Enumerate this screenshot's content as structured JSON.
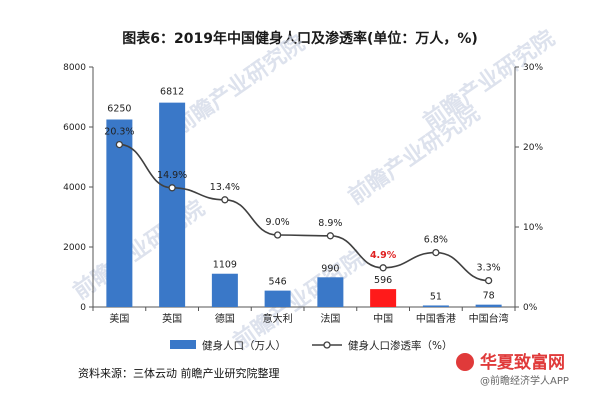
{
  "chart_data": {
    "type": "bar+line",
    "title": "图表6：2019年中国健身人口及渗透率(单位：万人，%)",
    "categories": [
      "美国",
      "英国",
      "德国",
      "意大利",
      "法国",
      "中国",
      "中国香港",
      "中国台湾"
    ],
    "series": [
      {
        "name": "健身人口（万人）",
        "type": "bar",
        "axis": "left",
        "values": [
          6250,
          6812,
          1109,
          546,
          990,
          596,
          51,
          78
        ],
        "labels": [
          "6250",
          "6812",
          "1109",
          "546",
          "990",
          "596",
          "51",
          "78"
        ]
      },
      {
        "name": "健身人口渗透率（%）",
        "type": "line",
        "axis": "right",
        "values": [
          20.3,
          14.9,
          13.4,
          9.0,
          8.9,
          4.9,
          6.8,
          3.3
        ],
        "labels": [
          "20.3%",
          "14.9%",
          "13.4%",
          "9.0%",
          "8.9%",
          "4.9%",
          "6.8%",
          "3.3%"
        ]
      }
    ],
    "highlight_index": 5,
    "y_left": {
      "min": 0,
      "max": 8000,
      "ticks": [
        "0",
        "2000",
        "4000",
        "6000",
        "8000"
      ],
      "tick_values": [
        0,
        2000,
        4000,
        6000,
        8000
      ]
    },
    "y_right": {
      "min": 0,
      "max": 30,
      "ticks": [
        "0%",
        "10%",
        "20%",
        "30%"
      ],
      "tick_values": [
        0,
        10,
        20,
        30
      ]
    },
    "legend": [
      "健身人口（万人）",
      "健身人口渗透率（%）"
    ]
  },
  "source": "资料来源：三体云动 前瞻产业研究院整理",
  "watermark": "前瞻产业研究院",
  "branding": {
    "logo_text": "华夏致富网",
    "handle": "@前瞻经济学人APP"
  },
  "colors": {
    "bar": "#3a78c8",
    "bar_highlight": "#ff1a1a",
    "line": "#404040",
    "brand": "#e03a3a"
  }
}
